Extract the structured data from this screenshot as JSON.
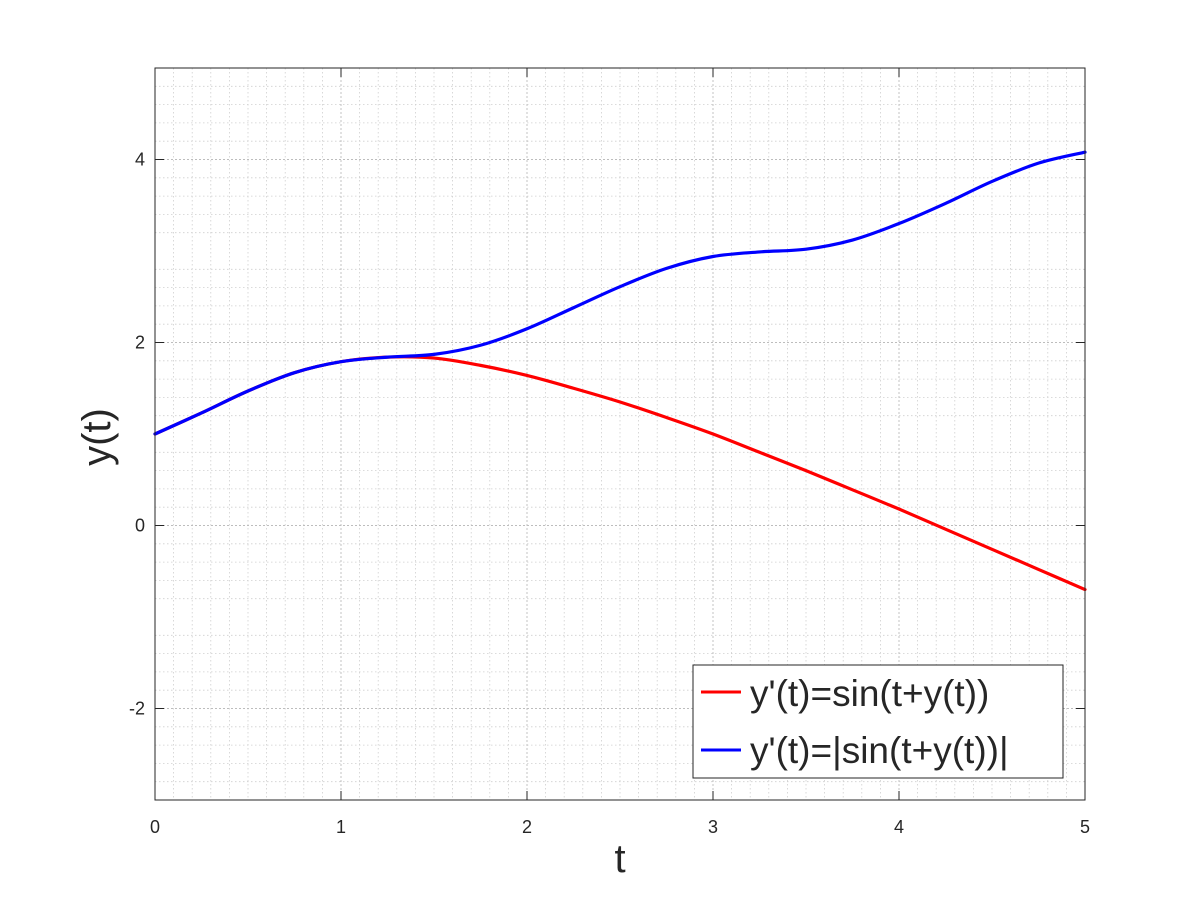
{
  "chart_data": {
    "type": "line",
    "title": "",
    "xlabel": "t",
    "ylabel": "y(t)",
    "xlim": [
      0,
      5
    ],
    "ylim": [
      -3,
      5
    ],
    "xticks": [
      0,
      1,
      2,
      3,
      4,
      5
    ],
    "xtick_labels": [
      "0",
      "1",
      "2",
      "3",
      "4",
      "5"
    ],
    "yticks": [
      -2,
      0,
      2,
      4
    ],
    "ytick_labels": [
      "-2",
      "0",
      "2",
      "4"
    ],
    "grid": true,
    "minor_grid": true,
    "legend_position": "bottom-right",
    "series": [
      {
        "name": "y'(t)=sin(t+y(t))",
        "color": "#ff0000",
        "x": [
          0,
          0.25,
          0.5,
          0.75,
          1.0,
          1.25,
          1.5,
          1.75,
          2.0,
          2.25,
          2.5,
          2.75,
          3.0,
          3.25,
          3.5,
          3.75,
          4.0,
          4.25,
          4.5,
          4.75,
          5.0
        ],
        "y": [
          1.0,
          1.23,
          1.47,
          1.67,
          1.79,
          1.84,
          1.83,
          1.75,
          1.64,
          1.5,
          1.35,
          1.18,
          1.0,
          0.8,
          0.6,
          0.39,
          0.18,
          -0.04,
          -0.26,
          -0.48,
          -0.7
        ]
      },
      {
        "name": "y'(t)=|sin(t+y(t))|",
        "color": "#0000ff",
        "x": [
          0,
          0.25,
          0.5,
          0.75,
          1.0,
          1.25,
          1.5,
          1.75,
          2.0,
          2.25,
          2.5,
          2.75,
          3.0,
          3.25,
          3.5,
          3.75,
          4.0,
          4.25,
          4.5,
          4.75,
          5.0
        ],
        "y": [
          1.0,
          1.23,
          1.47,
          1.67,
          1.79,
          1.84,
          1.87,
          1.97,
          2.15,
          2.38,
          2.61,
          2.81,
          2.94,
          2.99,
          3.02,
          3.12,
          3.3,
          3.52,
          3.76,
          3.96,
          4.08
        ]
      }
    ]
  }
}
